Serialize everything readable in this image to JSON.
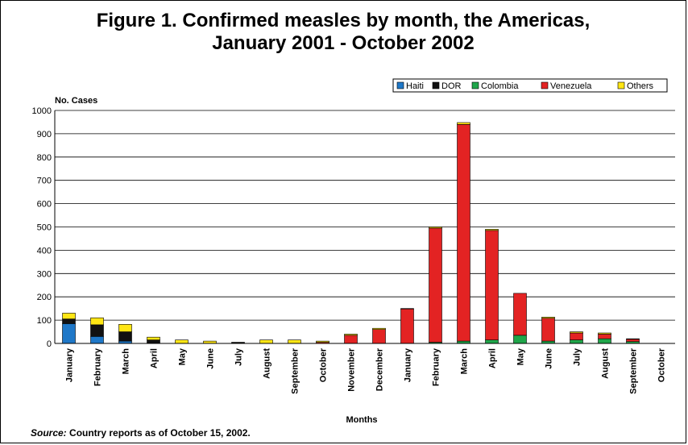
{
  "title_line1": "Figure 1. Confirmed measles by month, the Americas,",
  "title_line2": "January 2001 - October 2002",
  "source_label": "Source:",
  "source_text": " Country reports as of October 15, 2002.",
  "chart_data": {
    "type": "bar",
    "stacked": true,
    "ylabel": "No. Cases",
    "xlabel": "Months",
    "ylim": [
      0,
      1000
    ],
    "yticks": [
      0,
      100,
      200,
      300,
      400,
      500,
      600,
      700,
      800,
      900,
      1000
    ],
    "grid": true,
    "legend_position": "top-right",
    "categories": [
      "January",
      "February",
      "March",
      "April",
      "May",
      "June",
      "July",
      "August",
      "September",
      "October",
      "November",
      "December",
      "January",
      "February",
      "March",
      "April",
      "May",
      "June",
      "July",
      "August",
      "September",
      "October"
    ],
    "series": [
      {
        "name": "Haiti",
        "color": "#1f78c8",
        "values": [
          85,
          30,
          10,
          0,
          0,
          0,
          3,
          0,
          0,
          0,
          0,
          0,
          0,
          0,
          0,
          0,
          0,
          0,
          0,
          0,
          0,
          0
        ]
      },
      {
        "name": "DOR",
        "color": "#111111",
        "values": [
          20,
          50,
          40,
          15,
          0,
          0,
          0,
          0,
          0,
          0,
          0,
          0,
          0,
          0,
          0,
          0,
          0,
          0,
          0,
          0,
          0,
          0
        ]
      },
      {
        "name": "Colombia",
        "color": "#1fa64a",
        "values": [
          0,
          0,
          0,
          0,
          0,
          0,
          0,
          0,
          0,
          0,
          0,
          0,
          0,
          5,
          10,
          15,
          35,
          10,
          15,
          20,
          8,
          0
        ]
      },
      {
        "name": "Venezuela",
        "color": "#e32323",
        "values": [
          0,
          0,
          0,
          0,
          0,
          0,
          0,
          0,
          0,
          5,
          35,
          60,
          148,
          490,
          930,
          470,
          180,
          98,
          30,
          20,
          10,
          0
        ]
      },
      {
        "name": "Others",
        "color": "#ffe614",
        "values": [
          25,
          30,
          32,
          12,
          15,
          10,
          2,
          15,
          15,
          5,
          5,
          5,
          2,
          5,
          8,
          5,
          0,
          5,
          5,
          5,
          2,
          0
        ]
      }
    ]
  }
}
